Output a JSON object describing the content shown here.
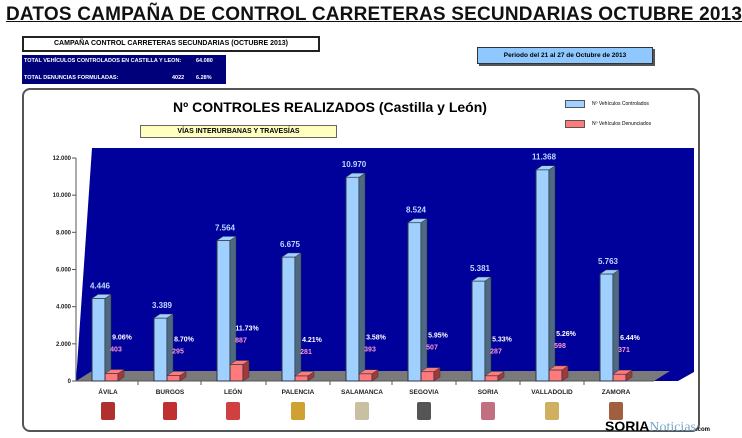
{
  "header": {
    "title": "DATOS CAMPAÑA DE CONTROL CARRETERAS SECUNDARIAS OCTUBRE 2013",
    "campaign": "CAMPAÑA CONTROL CARRETERAS SECUNDARIAS (OCTUBRE 2013)",
    "total_vehicles_label": "TOTAL VEHÍCULOS CONTROLADOS EN CASTILLA Y LEON:",
    "total_vehicles": "64.080",
    "total_denuncias_label": "TOTAL DENUNCIAS FORMULADAS:",
    "total_denuncias": "4022",
    "total_denuncias_pct": "6.28%",
    "period": "Periodo del 21 al 27 de Octubre de 2013"
  },
  "logo": {
    "brand": "SORIA",
    "brand2": "Noticias",
    "suffix": ".com"
  },
  "chart_data": {
    "type": "bar",
    "title": "Nº CONTROLES REALIZADOS (Castilla y León)",
    "subtitle": "VÍAS INTERURBANAS  Y TRAVESÍAS",
    "categories": [
      "ÁVILA",
      "BURGOS",
      "LEÓN",
      "PALENCIA",
      "SALAMANCA",
      "SEGOVIA",
      "SORIA",
      "VALLADOLID",
      "ZAMORA"
    ],
    "series": [
      {
        "name": "Nº Vehículos Controlados",
        "color": "#9fd0ff",
        "values": [
          4446,
          3389,
          7564,
          6675,
          10970,
          8524,
          5381,
          11368,
          5763
        ],
        "labels": [
          "4.446",
          "3.389",
          "7.564",
          "6.675",
          "10.970",
          "8.524",
          "5.381",
          "11.368",
          "5.763"
        ]
      },
      {
        "name": "Nº Vehículos Denunciados",
        "color": "#ff7b7b",
        "values": [
          403,
          295,
          887,
          281,
          393,
          507,
          287,
          598,
          371
        ],
        "labels": [
          "403",
          "295",
          "887",
          "281",
          "393",
          "507",
          "287",
          "598",
          "371"
        ]
      }
    ],
    "percent_labels": [
      "9.06%",
      "8.70%",
      "11.73%",
      "4.21%",
      "3.58%",
      "5.95%",
      "5.33%",
      "5.26%",
      "6.44%"
    ],
    "yticks": [
      "0",
      "2.000",
      "4.000",
      "6.000",
      "8.000",
      "10.000",
      "12.000"
    ],
    "ylim": [
      0,
      12000
    ],
    "legend": "top-right",
    "background": "#00009a"
  }
}
